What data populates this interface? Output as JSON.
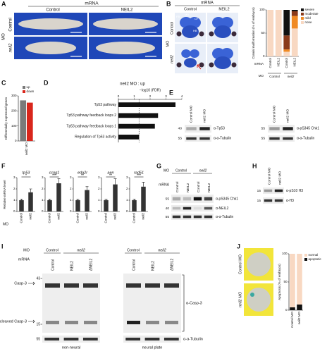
{
  "figure": {
    "panel_letters": [
      "A",
      "B",
      "C",
      "D",
      "E",
      "F",
      "G",
      "H",
      "I",
      "J"
    ],
    "A": {
      "top_title": "mRNA",
      "columns": [
        "Control",
        "NEIL2"
      ],
      "side_title": "MO",
      "rows": [
        "Control",
        "neil2"
      ]
    },
    "B": {
      "top_title": "mRNA",
      "columns": [
        "Control",
        "NEIL2"
      ],
      "side_title": "MO",
      "rows": [
        "Control",
        "neil2"
      ],
      "regions": [
        "FB",
        "MB",
        "CF",
        "HB"
      ]
    },
    "E": {
      "blots": [
        {
          "lanes": [
            "Control MO",
            "neil2 MO"
          ],
          "antibodies": [
            "α-Tp53",
            "α-α-Tubulin"
          ],
          "markers": [
            "40",
            "55"
          ]
        },
        {
          "lanes": [
            "Control MO",
            "neil2 MO"
          ],
          "antibodies": [
            "α-pS345 Chk1",
            "α-α-Tubulin"
          ],
          "markers": [
            "55",
            "55"
          ]
        }
      ]
    },
    "G": {
      "row_titles": [
        "MO",
        "mRNA"
      ],
      "groups": [
        "Control",
        "neil2"
      ],
      "lanes": [
        "Control",
        "NEIL2",
        "Control",
        "NEIL2"
      ],
      "antibodies": [
        "α-pS345 Chk1",
        "α-NEIL2",
        "α-α-Tubulin"
      ],
      "markers": [
        "55",
        "40",
        "55"
      ]
    },
    "H": {
      "lanes": [
        "Control MO",
        "neil2 MO"
      ],
      "antibodies": [
        "α-pS10 H3",
        "α-H3"
      ],
      "markers": [
        "15",
        "15"
      ]
    },
    "I": {
      "row_titles": [
        "MO",
        "mRNA"
      ],
      "groups": [
        "Control",
        "neil2",
        "Control",
        "neil2"
      ],
      "lanes": [
        "Control",
        "NEIL2",
        "ΔNEIL2",
        "Control",
        "NEIL2",
        "ΔNEIL2"
      ],
      "antibodies": [
        "α-Casp-3",
        "α-α-Tubulin"
      ],
      "markers": [
        "43",
        "15",
        "55"
      ],
      "band_labels": [
        "Casp-3",
        "cleaved Casp-3"
      ],
      "tissues": [
        "non-neural",
        "neural plate"
      ]
    },
    "J": {
      "images": [
        "Control MO",
        "neil2 MO"
      ]
    }
  },
  "chart_data": [
    {
      "type": "stacked_bar",
      "ylabel": "Cranial malformation (% of embryos)",
      "row_labels": [
        "mRNA",
        "MO"
      ],
      "groups": [
        "Control",
        "neil2"
      ],
      "categories": [
        "Control",
        "NEIL2",
        "Control",
        "NEIL2"
      ],
      "ylim": [
        0,
        100
      ],
      "yticks": [
        0,
        50,
        100
      ],
      "series": [
        {
          "name": "severe",
          "color": "#111111",
          "values": [
            0,
            0,
            55,
            3
          ]
        },
        {
          "name": "moderate",
          "color": "#8b3a1a",
          "values": [
            0,
            0,
            30,
            10
          ]
        },
        {
          "name": "mild",
          "color": "#f08a24",
          "values": [
            0,
            0,
            5,
            27
          ]
        },
        {
          "name": "none",
          "color": "#f8d8c2",
          "values": [
            100,
            100,
            10,
            60
          ]
        }
      ]
    },
    {
      "type": "bar",
      "ylabel": "Differentially expressed genes",
      "categories": [
        "neil2 MO"
      ],
      "ylim": [
        0,
        300
      ],
      "yticks": [
        0,
        100,
        200,
        300
      ],
      "series": [
        {
          "name": "up",
          "color": "#7a7a7a",
          "values": [
            270
          ]
        },
        {
          "name": "down",
          "color": "#d9261c",
          "values": [
            255
          ]
        }
      ]
    },
    {
      "type": "hbar",
      "title": "neil2 MO : up",
      "xlabel": "−log10 (FDR)",
      "categories": [
        "Tp53 pathway",
        "Tp53 pathway feedback loops 2",
        "Tp53 pathway feedback loops 1",
        "Regulation of Tp53 activity"
      ],
      "values": [
        3.6,
        2.5,
        2.3,
        1.3
      ],
      "xlim": [
        0,
        4
      ],
      "xticks": [
        0,
        1,
        2,
        3,
        4
      ],
      "threshold": 1.3,
      "color": "#111111"
    },
    {
      "type": "bar",
      "title": "tp53",
      "ylabel": "Relative mRNA level",
      "row_label": "MO",
      "categories": [
        "Control",
        "neil2"
      ],
      "values": [
        1,
        1.7
      ],
      "errors": [
        0.1,
        0.3
      ],
      "annotation": "*",
      "ylim": [
        0,
        3
      ],
      "yticks": [
        0,
        1,
        2,
        3
      ],
      "color": "#333333"
    },
    {
      "type": "bar",
      "title": "ccng1",
      "categories": [
        "Control",
        "neil2"
      ],
      "values": [
        1,
        2.5
      ],
      "errors": [
        0.1,
        0.4
      ],
      "annotation": "***",
      "ylim": [
        0,
        3
      ],
      "yticks": [
        0,
        1,
        2,
        3
      ],
      "color": "#333333"
    },
    {
      "type": "bar",
      "title": "eda2r",
      "categories": [
        "Control",
        "neil2"
      ],
      "values": [
        1,
        1.9
      ],
      "errors": [
        0.1,
        0.3
      ],
      "annotation": "**",
      "ylim": [
        0,
        3
      ],
      "yticks": [
        0,
        1,
        2,
        3
      ],
      "color": "#333333"
    },
    {
      "type": "bar",
      "title": "aen",
      "categories": [
        "Control",
        "neil2"
      ],
      "values": [
        1,
        2.4
      ],
      "errors": [
        0.1,
        0.5
      ],
      "annotation": "**",
      "ylim": [
        0,
        3
      ],
      "yticks": [
        0,
        1,
        2,
        3
      ],
      "color": "#333333"
    },
    {
      "type": "bar",
      "title": "rad51",
      "categories": [
        "Control",
        "neil2"
      ],
      "values": [
        1,
        2.2
      ],
      "errors": [
        0.1,
        0.4
      ],
      "annotation": "***",
      "ylim": [
        0,
        3
      ],
      "yticks": [
        0,
        1,
        2,
        3
      ],
      "color": "#333333"
    },
    {
      "type": "stacked_bar",
      "ylabel": "Apoptosis (% of embryos)",
      "categories": [
        "Control MO",
        "neil2 MO"
      ],
      "ylim": [
        0,
        100
      ],
      "yticks": [
        0,
        50,
        100
      ],
      "series": [
        {
          "name": "normal",
          "color": "#f8d8c2",
          "values": [
            95,
            90
          ]
        },
        {
          "name": "apoptotic",
          "color": "#111111",
          "values": [
            5,
            10
          ]
        }
      ]
    }
  ]
}
